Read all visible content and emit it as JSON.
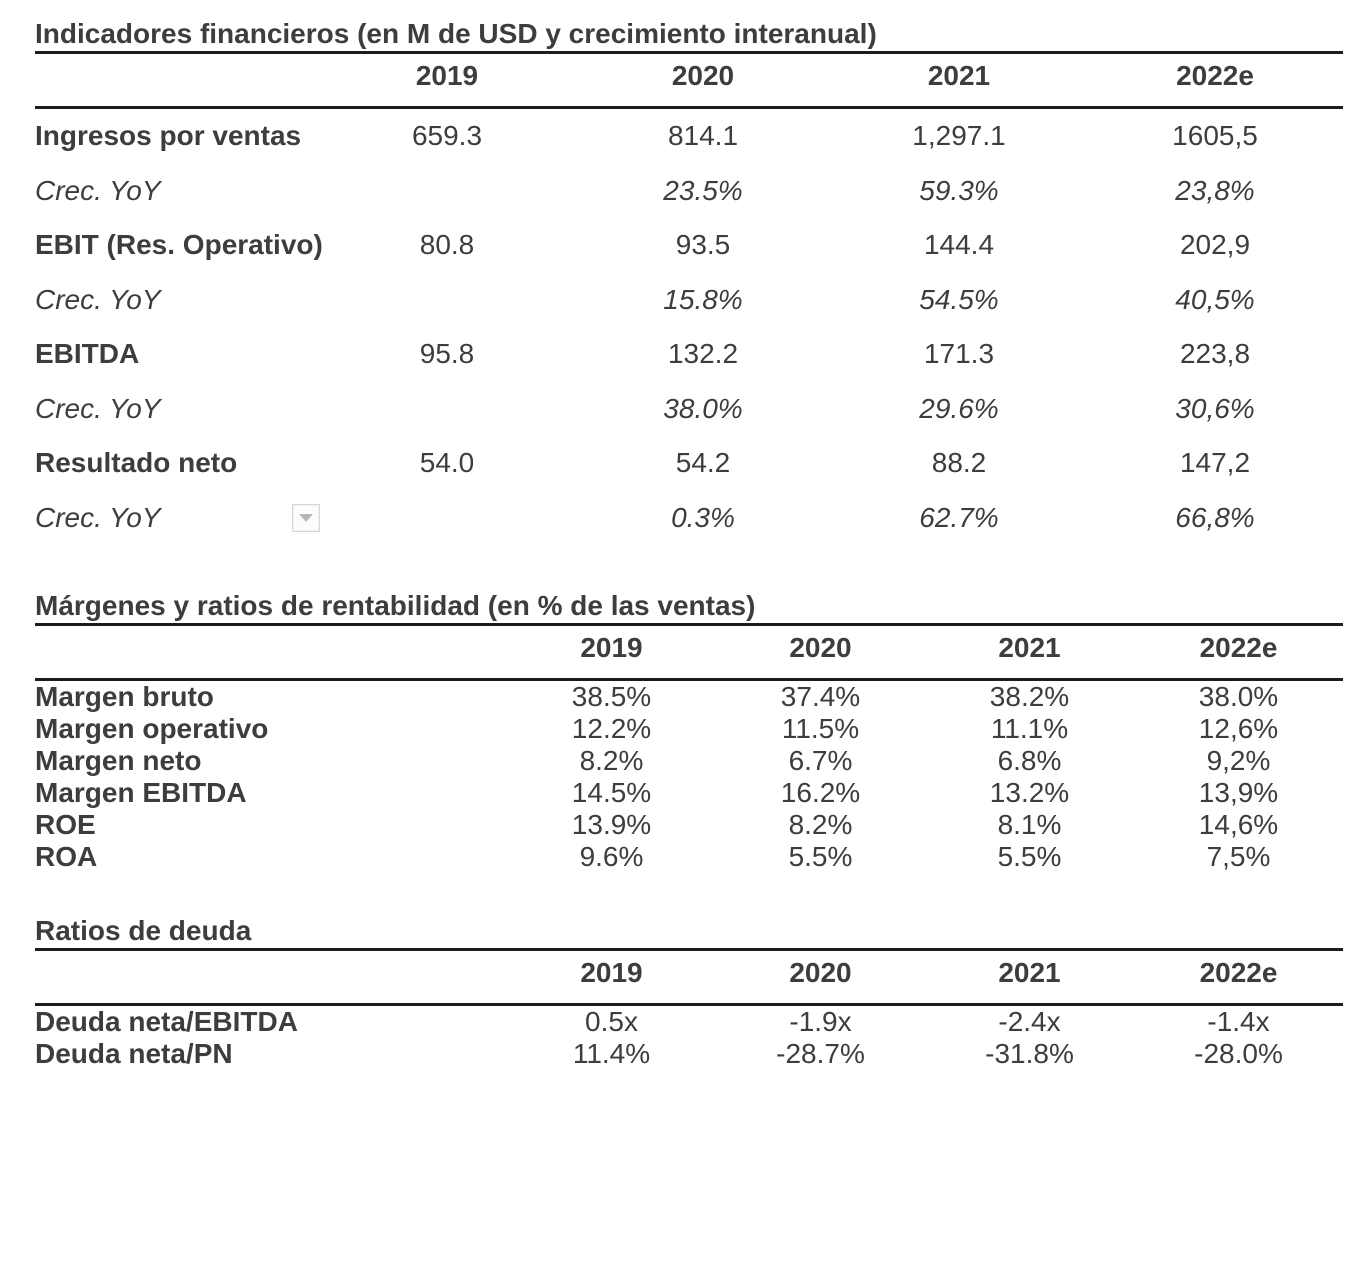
{
  "page": {
    "background": "#ffffff",
    "text_color": "#3d3d3d",
    "rule_color": "#1d1d1d"
  },
  "icons": {
    "dropdown_button": "chevron-down-icon",
    "dropdown_color": "#b7b7b7"
  },
  "tables": [
    {
      "title": "Indicadores financieros (en M de USD y crecimiento interanual)",
      "columns": [
        "2019",
        "2020",
        "2021",
        "2022e"
      ],
      "rows": [
        {
          "label": "Ingresos por ventas",
          "emphasis": "bold",
          "values": [
            "659.3",
            "814.1",
            "1,297.1",
            "1605,5"
          ]
        },
        {
          "label": "Crec. YoY",
          "emphasis": "italic",
          "values": [
            "",
            "23.5%",
            "59.3%",
            "23,8%"
          ]
        },
        {
          "label": "EBIT (Res. Operativo)",
          "emphasis": "bold",
          "values": [
            "80.8",
            "93.5",
            "144.4",
            "202,9"
          ]
        },
        {
          "label": "Crec. YoY",
          "emphasis": "italic",
          "values": [
            "",
            "15.8%",
            "54.5%",
            "40,5%"
          ]
        },
        {
          "label": "EBITDA",
          "emphasis": "bold",
          "values": [
            "95.8",
            "132.2",
            "171.3",
            "223,8"
          ]
        },
        {
          "label": "Crec. YoY",
          "emphasis": "italic",
          "values": [
            "",
            "38.0%",
            "29.6%",
            "30,6%"
          ]
        },
        {
          "label": "Resultado neto",
          "emphasis": "bold",
          "values": [
            "54.0",
            "54.2",
            "88.2",
            "147,2"
          ]
        },
        {
          "label": "Crec. YoY",
          "emphasis": "italic",
          "has_dropdown": true,
          "values": [
            "",
            "0.3%",
            "62.7%",
            "66,8%"
          ]
        }
      ]
    },
    {
      "title": "Márgenes y ratios de rentabilidad (en % de las ventas)",
      "columns": [
        "2019",
        "2020",
        "2021",
        "2022e"
      ],
      "rows": [
        {
          "label": "Margen bruto",
          "emphasis": "bold",
          "values": [
            "38.5%",
            "37.4%",
            "38.2%",
            "38.0%"
          ]
        },
        {
          "label": "Margen operativo",
          "emphasis": "bold",
          "values": [
            "12.2%",
            "11.5%",
            "11.1%",
            "12,6%"
          ]
        },
        {
          "label": "Margen neto",
          "emphasis": "bold",
          "values": [
            "8.2%",
            "6.7%",
            "6.8%",
            "9,2%"
          ]
        },
        {
          "label": "Margen EBITDA",
          "emphasis": "bold",
          "values": [
            "14.5%",
            "16.2%",
            "13.2%",
            "13,9%"
          ]
        },
        {
          "label": "ROE",
          "emphasis": "bold",
          "values": [
            "13.9%",
            "8.2%",
            "8.1%",
            "14,6%"
          ]
        },
        {
          "label": "ROA",
          "emphasis": "bold",
          "values": [
            "9.6%",
            "5.5%",
            "5.5%",
            "7,5%"
          ]
        }
      ]
    },
    {
      "title": "Ratios de deuda",
      "columns": [
        "2019",
        "2020",
        "2021",
        "2022e"
      ],
      "rows": [
        {
          "label": "Deuda neta/EBITDA",
          "emphasis": "bold",
          "values": [
            "0.5x",
            "-1.9x",
            "-2.4x",
            "-1.4x"
          ]
        },
        {
          "label": "Deuda neta/PN",
          "emphasis": "bold",
          "values": [
            "11.4%",
            "-28.7%",
            "-31.8%",
            "-28.0%"
          ]
        }
      ]
    }
  ]
}
